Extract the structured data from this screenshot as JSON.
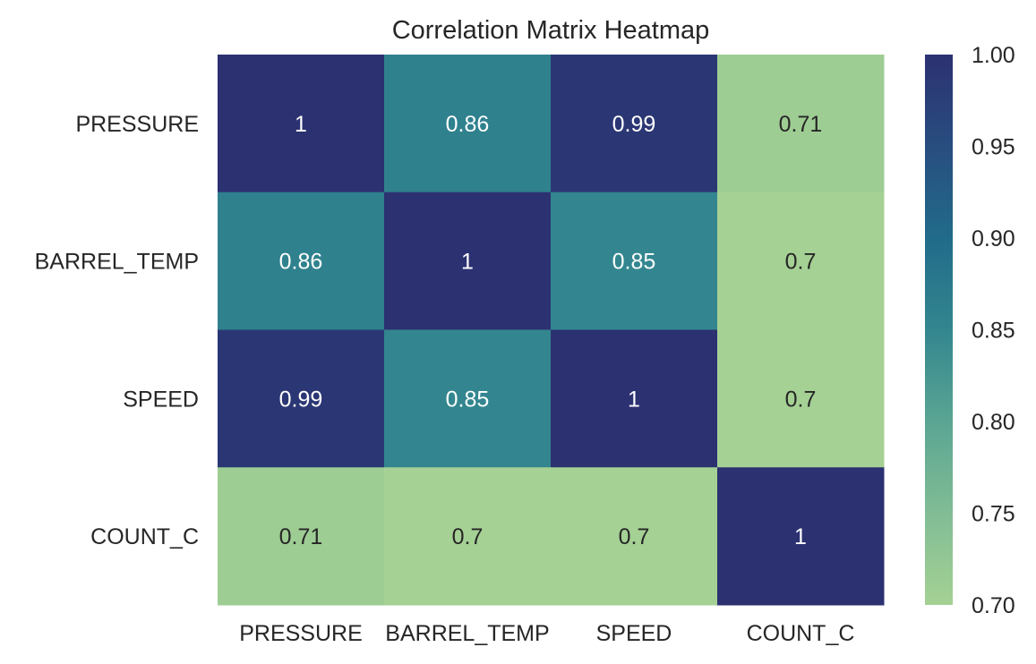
{
  "chart_data": {
    "type": "heatmap",
    "title": "Correlation Matrix Heatmap",
    "x_labels": [
      "PRESSURE",
      "BARREL_TEMP",
      "SPEED",
      "COUNT_C"
    ],
    "y_labels": [
      "PRESSURE",
      "BARREL_TEMP",
      "SPEED",
      "COUNT_C"
    ],
    "values": [
      [
        1.0,
        0.86,
        0.99,
        0.71
      ],
      [
        0.86,
        1.0,
        0.85,
        0.7
      ],
      [
        0.99,
        0.85,
        1.0,
        0.7
      ],
      [
        0.71,
        0.7,
        0.7,
        1.0
      ]
    ],
    "annotations": [
      [
        "1",
        "0.86",
        "0.99",
        "0.71"
      ],
      [
        "0.86",
        "1",
        "0.85",
        "0.7"
      ],
      [
        "0.99",
        "0.85",
        "1",
        "0.7"
      ],
      [
        "0.71",
        "0.7",
        "0.7",
        "1"
      ]
    ],
    "colorbar": {
      "vmin": 0.7,
      "vmax": 1.0,
      "ticks": [
        "0.70",
        "0.75",
        "0.80",
        "0.85",
        "0.90",
        "0.95",
        "1.00"
      ],
      "colormap": "crest",
      "stops": [
        {
          "v": 0.7,
          "color": "#a5d194"
        },
        {
          "v": 0.75,
          "color": "#81bc95"
        },
        {
          "v": 0.8,
          "color": "#5aa593"
        },
        {
          "v": 0.85,
          "color": "#33868f"
        },
        {
          "v": 0.9,
          "color": "#216b8a"
        },
        {
          "v": 0.95,
          "color": "#284d7f"
        },
        {
          "v": 1.0,
          "color": "#2c3171"
        }
      ]
    },
    "annotation_colors": {
      "light": "#ffffff",
      "dark": "#262626"
    }
  }
}
